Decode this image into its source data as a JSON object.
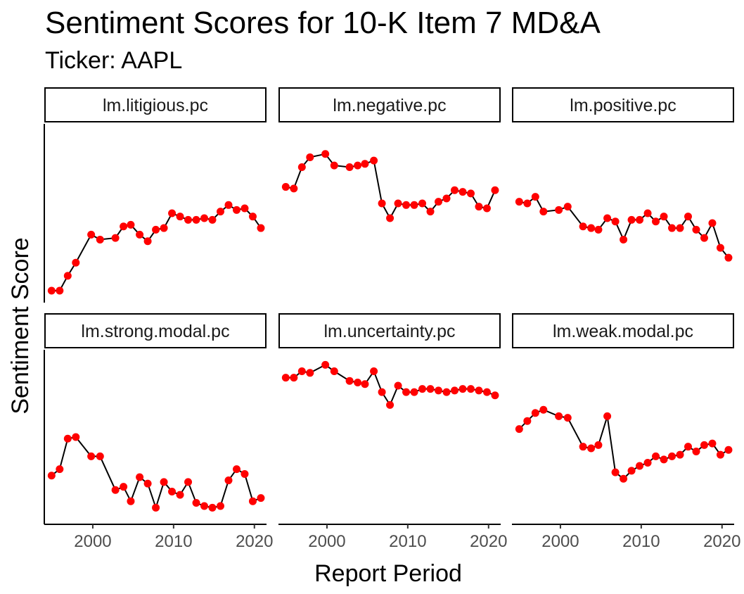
{
  "title": "Sentiment Scores for 10-K Item 7 MD&A",
  "subtitle": "Ticker: AAPL",
  "chart_data": {
    "type": "line",
    "xlabel": "Report Period",
    "ylabel": "Sentiment Score",
    "xlim": [
      1994,
      2021.5
    ],
    "x_ticks": [
      2000,
      2010,
      2020
    ],
    "x_tick_labels": [
      "2000",
      "2010",
      "2020"
    ],
    "y_ticks_shown": false,
    "line_color": "#000000",
    "point_color": "#ff0000",
    "x": [
      1994.9,
      1995.9,
      1996.9,
      1997.9,
      1999.8,
      2000.9,
      2002.8,
      2003.8,
      2004.7,
      2005.8,
      2006.8,
      2007.8,
      2008.8,
      2009.8,
      2010.8,
      2011.8,
      2012.8,
      2013.8,
      2014.8,
      2015.8,
      2016.8,
      2017.8,
      2018.8,
      2019.8,
      2020.8
    ],
    "facets": [
      {
        "name": "lm.litigious.pc",
        "values": [
          0.03,
          0.03,
          0.12,
          0.2,
          0.37,
          0.34,
          0.35,
          0.42,
          0.43,
          0.37,
          0.33,
          0.4,
          0.41,
          0.5,
          0.48,
          0.46,
          0.46,
          0.47,
          0.46,
          0.51,
          0.55,
          0.52,
          0.53,
          0.48,
          0.41
        ]
      },
      {
        "name": "lm.negative.pc",
        "values": [
          0.66,
          0.65,
          0.78,
          0.84,
          0.86,
          0.79,
          0.78,
          0.79,
          0.8,
          0.82,
          0.56,
          0.47,
          0.56,
          0.55,
          0.55,
          0.56,
          0.51,
          0.57,
          0.59,
          0.64,
          0.63,
          0.62,
          0.54,
          0.53,
          0.64
        ]
      },
      {
        "name": "lm.positive.pc",
        "values": [
          0.57,
          0.56,
          0.6,
          0.51,
          0.52,
          0.54,
          0.42,
          0.41,
          0.4,
          0.47,
          0.45,
          0.34,
          0.46,
          0.46,
          0.5,
          0.45,
          0.48,
          0.41,
          0.41,
          0.48,
          0.4,
          0.35,
          0.44,
          0.29,
          0.23
        ]
      },
      {
        "name": "lm.strong.modal.pc",
        "values": [
          0.26,
          0.3,
          0.49,
          0.5,
          0.38,
          0.38,
          0.17,
          0.19,
          0.1,
          0.25,
          0.21,
          0.06,
          0.22,
          0.16,
          0.14,
          0.22,
          0.09,
          0.07,
          0.06,
          0.07,
          0.23,
          0.3,
          0.27,
          0.1,
          0.12
        ]
      },
      {
        "name": "lm.uncertainty.pc",
        "values": [
          0.87,
          0.87,
          0.91,
          0.9,
          0.95,
          0.91,
          0.85,
          0.84,
          0.83,
          0.91,
          0.78,
          0.7,
          0.82,
          0.78,
          0.78,
          0.8,
          0.8,
          0.79,
          0.78,
          0.79,
          0.8,
          0.8,
          0.79,
          0.78,
          0.76
        ]
      },
      {
        "name": "lm.weak.modal.pc",
        "values": [
          0.55,
          0.6,
          0.65,
          0.67,
          0.63,
          0.62,
          0.44,
          0.43,
          0.45,
          0.63,
          0.28,
          0.24,
          0.29,
          0.32,
          0.34,
          0.38,
          0.36,
          0.38,
          0.39,
          0.44,
          0.41,
          0.45,
          0.46,
          0.39,
          0.42
        ]
      }
    ]
  }
}
